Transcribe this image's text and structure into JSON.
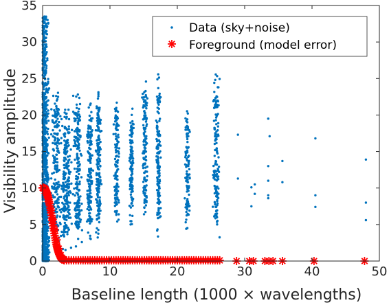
{
  "chart_data": {
    "type": "scatter",
    "xlabel": "Baseline length (1000 × wavelengths)",
    "ylabel": "Visibility amplitude",
    "xlim": [
      0,
      50
    ],
    "ylim": [
      0,
      35
    ],
    "x_ticks": [
      0,
      10,
      20,
      30,
      40,
      50
    ],
    "y_ticks": [
      0,
      5,
      10,
      15,
      20,
      25,
      30,
      35
    ],
    "grid": false,
    "legend_position": "top-right",
    "series": [
      {
        "name": "Data (sky+noise)",
        "marker": "dot",
        "color": "#0072BD",
        "clusters": [
          {
            "x": 0.3,
            "x_spread": 0.8,
            "y_min": 0,
            "y_max": 33.5,
            "count": 1000
          },
          {
            "x": 2.0,
            "x_spread": 1.0,
            "y_min": 2,
            "y_max": 24,
            "count": 200
          },
          {
            "x": 3.5,
            "x_spread": 0.9,
            "y_min": 1,
            "y_max": 21,
            "count": 220
          },
          {
            "x": 5.2,
            "x_spread": 0.8,
            "y_min": 2,
            "y_max": 23,
            "count": 200
          },
          {
            "x": 7.0,
            "x_spread": 0.6,
            "y_min": 3,
            "y_max": 22,
            "count": 170
          },
          {
            "x": 8.3,
            "x_spread": 0.5,
            "y_min": 3,
            "y_max": 24,
            "count": 180
          },
          {
            "x": 11.0,
            "x_spread": 0.5,
            "y_min": 4,
            "y_max": 22,
            "count": 130
          },
          {
            "x": 13.2,
            "x_spread": 0.4,
            "y_min": 5,
            "y_max": 21,
            "count": 120
          },
          {
            "x": 15.2,
            "x_spread": 0.5,
            "y_min": 5,
            "y_max": 26.3,
            "count": 130
          },
          {
            "x": 17.2,
            "x_spread": 0.5,
            "y_min": 3,
            "y_max": 25.7,
            "count": 150
          },
          {
            "x": 21.5,
            "x_spread": 0.5,
            "y_min": 4,
            "y_max": 20.7,
            "count": 110
          },
          {
            "x": 25.8,
            "x_spread": 0.6,
            "y_min": 3,
            "y_max": 25.8,
            "count": 150
          }
        ],
        "points": [
          {
            "x": 29.0,
            "y": 17.3
          },
          {
            "x": 29.0,
            "y": 11.3
          },
          {
            "x": 31.0,
            "y": 10.1
          },
          {
            "x": 31.0,
            "y": 7.5
          },
          {
            "x": 31.5,
            "y": 9.2
          },
          {
            "x": 31.5,
            "y": 10.5
          },
          {
            "x": 33.5,
            "y": 19.5
          },
          {
            "x": 33.5,
            "y": 13.0
          },
          {
            "x": 33.5,
            "y": 11.0
          },
          {
            "x": 33.5,
            "y": 8.6
          },
          {
            "x": 33.5,
            "y": 9.0
          },
          {
            "x": 33.7,
            "y": 17.1
          },
          {
            "x": 35.6,
            "y": 13.7
          },
          {
            "x": 35.6,
            "y": 10.8
          },
          {
            "x": 40.5,
            "y": 16.8
          },
          {
            "x": 40.5,
            "y": 9.0
          },
          {
            "x": 40.5,
            "y": 7.4
          },
          {
            "x": 48.0,
            "y": 13.9
          },
          {
            "x": 48.0,
            "y": 8.0
          },
          {
            "x": 48.0,
            "y": 5.6
          }
        ]
      },
      {
        "name": "Foreground (model error)",
        "marker": "asterisk",
        "color": "#FF0000",
        "curve": {
          "y0": 10.0,
          "x_tail_start": 3.2,
          "x_tail_end": 26.5,
          "y_tail": 0.1
        },
        "points": [
          {
            "x": 0.0,
            "y": 10.0
          },
          {
            "x": 0.3,
            "y": 9.6
          },
          {
            "x": 0.6,
            "y": 9.0
          },
          {
            "x": 0.9,
            "y": 8.1
          },
          {
            "x": 1.2,
            "y": 7.0
          },
          {
            "x": 1.5,
            "y": 5.7
          },
          {
            "x": 1.8,
            "y": 4.3
          },
          {
            "x": 2.1,
            "y": 2.9
          },
          {
            "x": 2.4,
            "y": 1.7
          },
          {
            "x": 2.7,
            "y": 0.8
          },
          {
            "x": 3.0,
            "y": 0.3
          },
          {
            "x": 3.2,
            "y": 0.1
          },
          {
            "x": 28.8,
            "y": 0.0
          },
          {
            "x": 30.7,
            "y": 0.0
          },
          {
            "x": 31.3,
            "y": 0.0
          },
          {
            "x": 33.0,
            "y": 0.0
          },
          {
            "x": 33.6,
            "y": 0.0
          },
          {
            "x": 34.2,
            "y": 0.0
          },
          {
            "x": 35.6,
            "y": 0.0
          },
          {
            "x": 40.3,
            "y": 0.0
          },
          {
            "x": 47.8,
            "y": 0.0
          }
        ]
      }
    ]
  }
}
